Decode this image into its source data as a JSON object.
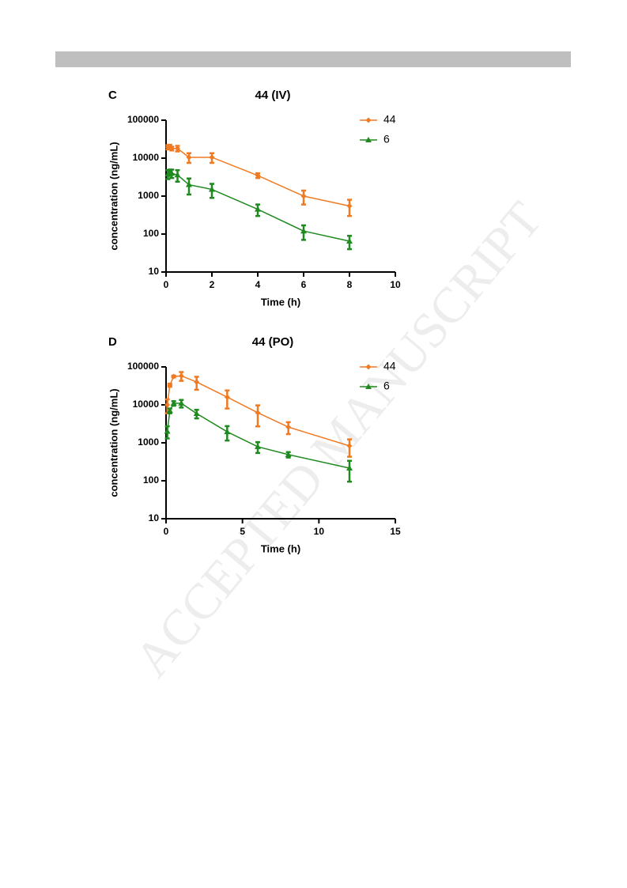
{
  "watermark": "ACCEPTED MANUSCRIPT",
  "chart_data": [
    {
      "type": "line",
      "panel": "C",
      "title": "44 (IV)",
      "x_label": "Time (h)",
      "y_label": "concentration (ng/mL)",
      "x": [
        0.083,
        0.167,
        0.25,
        0.5,
        1,
        2,
        4,
        6,
        8
      ],
      "series": [
        {
          "name": "44",
          "color": "#f07a22",
          "marker": "diamond",
          "values": [
            19500,
            20000,
            18000,
            18000,
            10500,
            10500,
            3500,
            1000,
            550
          ],
          "errors": [
            2500,
            2500,
            2000,
            3000,
            3000,
            3000,
            500,
            400,
            250
          ]
        },
        {
          "name": "6",
          "color": "#1f8a1f",
          "marker": "triangle",
          "values": [
            3800,
            4200,
            4000,
            3600,
            2000,
            1500,
            450,
            120,
            65
          ],
          "errors": [
            1000,
            800,
            1000,
            1200,
            900,
            600,
            150,
            50,
            25
          ]
        }
      ],
      "xlim": [
        0,
        10
      ],
      "xticks": [
        0,
        2,
        4,
        6,
        8,
        10
      ],
      "ylim": [
        10,
        100000
      ],
      "yticks": [
        10,
        100,
        1000,
        10000,
        100000
      ],
      "y_scale": "log",
      "legend": "upper right"
    },
    {
      "type": "line",
      "panel": "D",
      "title": "44 (PO)",
      "x_label": "Time (h)",
      "y_label": "concentration (ng/mL)",
      "x": [
        0.083,
        0.25,
        0.5,
        1,
        2,
        4,
        6,
        8,
        12
      ],
      "series": [
        {
          "name": "44",
          "color": "#f07a22",
          "marker": "diamond",
          "values": [
            10000,
            33000,
            56000,
            58000,
            40000,
            16000,
            6200,
            2600,
            830
          ],
          "errors": [
            4000,
            3000,
            3000,
            15000,
            15000,
            8000,
            3500,
            900,
            400
          ]
        },
        {
          "name": "6",
          "color": "#1f8a1f",
          "marker": "triangle",
          "values": [
            2000,
            7000,
            11000,
            11000,
            5900,
            1950,
            790,
            490,
            215
          ],
          "errors": [
            700,
            1000,
            1500,
            2500,
            1500,
            800,
            250,
            80,
            120
          ]
        }
      ],
      "xlim": [
        0,
        15
      ],
      "xticks": [
        0,
        5,
        10,
        15
      ],
      "ylim": [
        10,
        100000
      ],
      "yticks": [
        10,
        100,
        1000,
        10000,
        100000
      ],
      "y_scale": "log",
      "legend": "upper right"
    }
  ]
}
